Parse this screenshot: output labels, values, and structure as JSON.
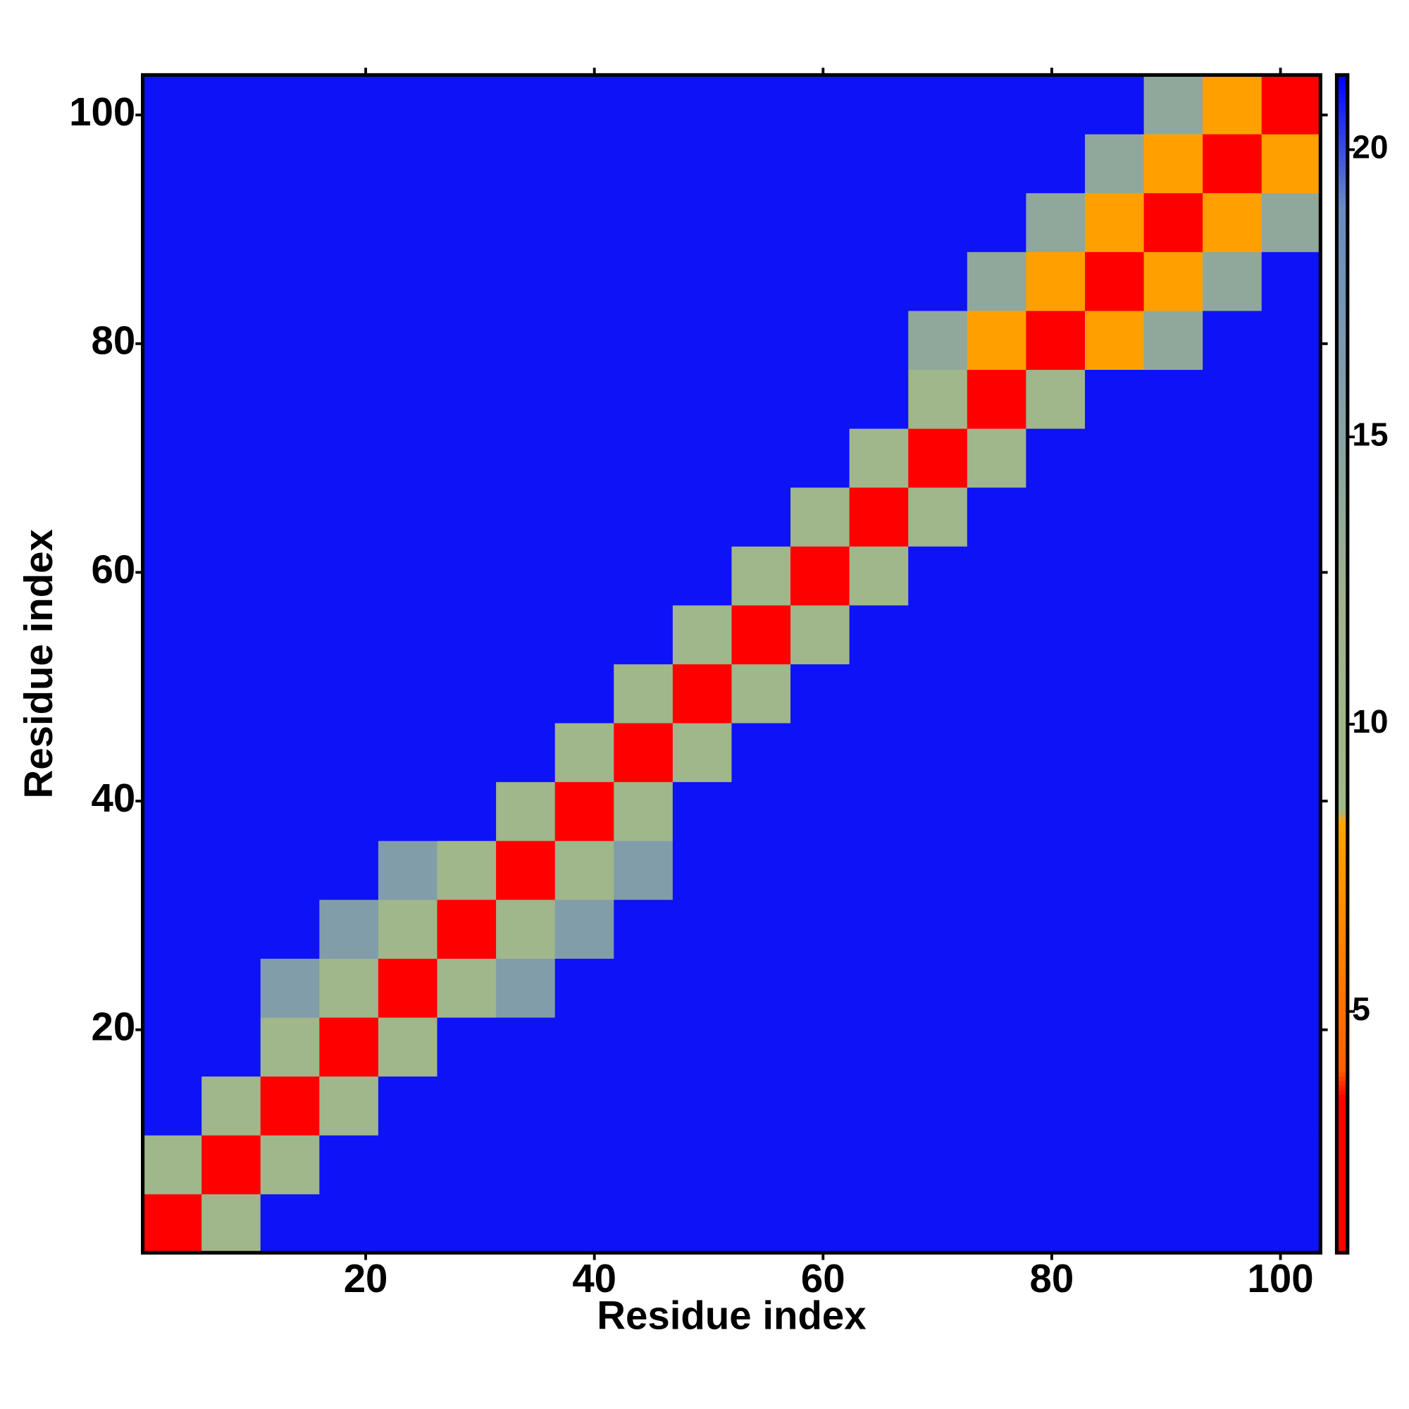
{
  "chart_data": {
    "type": "heatmap",
    "xlabel": "Residue index",
    "ylabel": "Residue index",
    "xlim": [
      0.5,
      103.5
    ],
    "ylim": [
      0.5,
      103.5
    ],
    "xticks": [
      20,
      40,
      60,
      80,
      100
    ],
    "yticks": [
      20,
      40,
      60,
      80,
      100
    ],
    "clim": [
      0.8,
      21.3
    ],
    "cticks": [
      5,
      10,
      15,
      20
    ],
    "colorscale": [
      [
        0.8,
        "#ff0000"
      ],
      [
        3.5,
        "#ff0000"
      ],
      [
        4,
        "#ff6000"
      ],
      [
        8.3,
        "#ffa500"
      ],
      [
        8.5,
        "#a0b88a"
      ],
      [
        12,
        "#9fb38c"
      ],
      [
        19,
        "#6a8cc0"
      ],
      [
        21.3,
        "#0000ff"
      ]
    ],
    "values": [
      [
        3,
        10,
        21,
        21,
        21,
        21,
        21,
        21,
        21,
        21,
        21,
        21,
        21,
        21,
        21,
        21,
        21,
        21,
        21,
        21
      ],
      [
        10,
        3,
        10,
        21,
        21,
        21,
        21,
        21,
        21,
        21,
        21,
        21,
        21,
        21,
        21,
        21,
        21,
        21,
        21,
        21
      ],
      [
        21,
        10,
        3,
        10,
        21,
        21,
        21,
        21,
        21,
        21,
        21,
        21,
        21,
        21,
        21,
        21,
        21,
        21,
        21,
        21
      ],
      [
        21,
        21,
        10,
        3,
        10,
        21,
        21,
        21,
        21,
        21,
        21,
        21,
        21,
        21,
        21,
        21,
        21,
        21,
        21,
        21
      ],
      [
        21,
        21,
        16,
        10,
        3,
        10,
        16,
        21,
        21,
        21,
        21,
        21,
        21,
        21,
        21,
        21,
        21,
        21,
        21,
        21
      ],
      [
        21,
        21,
        21,
        16,
        10,
        3,
        10,
        16,
        21,
        21,
        21,
        21,
        21,
        21,
        21,
        21,
        21,
        21,
        21,
        21
      ],
      [
        21,
        21,
        21,
        21,
        16,
        10,
        3,
        10,
        16,
        21,
        21,
        21,
        21,
        21,
        21,
        21,
        21,
        21,
        21,
        21
      ],
      [
        21,
        21,
        21,
        21,
        21,
        21,
        10,
        3,
        10,
        21,
        21,
        21,
        21,
        21,
        21,
        21,
        21,
        21,
        21,
        21
      ],
      [
        21,
        21,
        21,
        21,
        21,
        21,
        21,
        10,
        3,
        10,
        21,
        21,
        21,
        21,
        21,
        21,
        21,
        21,
        21,
        21
      ],
      [
        21,
        21,
        21,
        21,
        21,
        21,
        21,
        21,
        10,
        3,
        10,
        21,
        21,
        21,
        21,
        21,
        21,
        21,
        21,
        21
      ],
      [
        21,
        21,
        21,
        21,
        21,
        21,
        21,
        21,
        21,
        10,
        3,
        10,
        21,
        21,
        21,
        21,
        21,
        21,
        21,
        21
      ],
      [
        21,
        21,
        21,
        21,
        21,
        21,
        21,
        21,
        21,
        21,
        10,
        3,
        10,
        21,
        21,
        21,
        21,
        21,
        21,
        21
      ],
      [
        21,
        21,
        21,
        21,
        21,
        21,
        21,
        21,
        21,
        21,
        21,
        10,
        3,
        10,
        21,
        21,
        21,
        21,
        21,
        21
      ],
      [
        21,
        21,
        21,
        21,
        21,
        21,
        21,
        21,
        21,
        21,
        21,
        21,
        10,
        3,
        10,
        21,
        21,
        21,
        21,
        21
      ],
      [
        21,
        21,
        21,
        21,
        21,
        21,
        21,
        21,
        21,
        21,
        21,
        21,
        21,
        10,
        3,
        10,
        21,
        21,
        21,
        21
      ],
      [
        21,
        21,
        21,
        21,
        21,
        21,
        21,
        21,
        21,
        21,
        21,
        21,
        21,
        14,
        8,
        3,
        8,
        14,
        21,
        21
      ],
      [
        21,
        21,
        21,
        21,
        21,
        21,
        21,
        21,
        21,
        21,
        21,
        21,
        21,
        21,
        14,
        8,
        3,
        8,
        14,
        21
      ],
      [
        21,
        21,
        21,
        21,
        21,
        21,
        21,
        21,
        21,
        21,
        21,
        21,
        21,
        21,
        21,
        14,
        8,
        3,
        8,
        14
      ],
      [
        21,
        21,
        21,
        21,
        21,
        21,
        21,
        21,
        21,
        21,
        21,
        21,
        21,
        21,
        21,
        21,
        14,
        8,
        3,
        8
      ],
      [
        21,
        21,
        21,
        21,
        21,
        21,
        21,
        21,
        21,
        21,
        21,
        21,
        21,
        21,
        21,
        21,
        21,
        14,
        8,
        3
      ]
    ]
  }
}
